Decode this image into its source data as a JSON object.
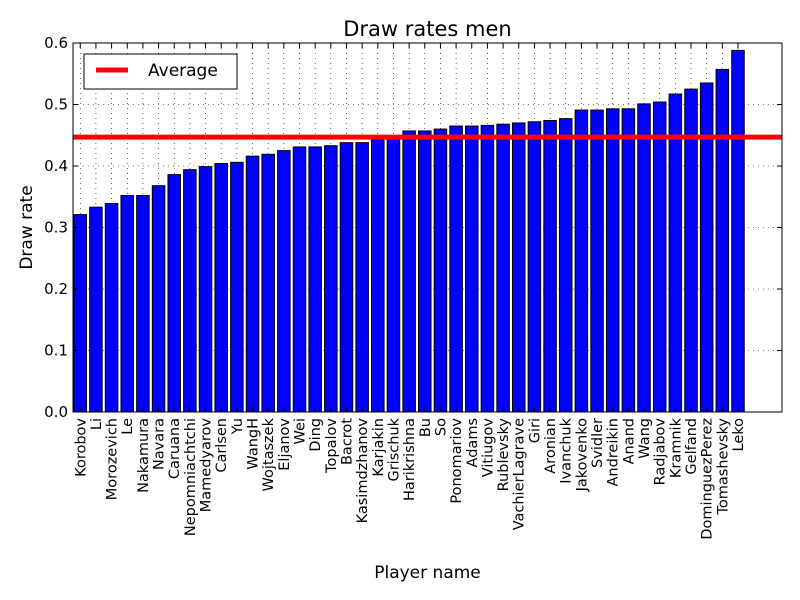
{
  "chart_data": {
    "type": "bar",
    "title": "Draw rates men",
    "xlabel": "Player name",
    "ylabel": "Draw rate",
    "ylim": [
      0.0,
      0.6
    ],
    "yticks": [
      "0.0",
      "0.1",
      "0.2",
      "0.3",
      "0.4",
      "0.5",
      "0.6"
    ],
    "grid": true,
    "legend": {
      "position": "upper left",
      "entries": [
        "Average"
      ]
    },
    "average_line": {
      "label": "Average",
      "value": 0.447,
      "color": "#ff0000"
    },
    "bar_color": "#0000ff",
    "categories": [
      "Korobov",
      "Li",
      "Morozevich",
      "Le",
      "Nakamura",
      "Navara",
      "Caruana",
      "Nepomniachtchi",
      "Mamedyarov",
      "Carlsen",
      "Yu",
      "WangH",
      "Wojtaszek",
      "Eljanov",
      "Wei",
      "Ding",
      "Topalov",
      "Bacrot",
      "Kasimdzhanov",
      "Karjakin",
      "Grischuk",
      "Harikrishna",
      "Bu",
      "So",
      "Ponomariov",
      "Adams",
      "Vitiugov",
      "Rublevsky",
      "VachierLagrave",
      "Giri",
      "Aronian",
      "Ivanchuk",
      "Jakovenko",
      "Svidler",
      "Andreikin",
      "Anand",
      "Wang",
      "Radjabov",
      "Kramnik",
      "Gelfand",
      "DominguezPerez",
      "Tomashevsky",
      "Leko"
    ],
    "values": [
      0.321,
      0.333,
      0.339,
      0.352,
      0.352,
      0.368,
      0.386,
      0.394,
      0.399,
      0.404,
      0.406,
      0.416,
      0.419,
      0.425,
      0.431,
      0.431,
      0.433,
      0.438,
      0.438,
      0.446,
      0.447,
      0.457,
      0.457,
      0.46,
      0.465,
      0.465,
      0.466,
      0.468,
      0.47,
      0.472,
      0.474,
      0.477,
      0.491,
      0.491,
      0.493,
      0.493,
      0.501,
      0.504,
      0.517,
      0.525,
      0.535,
      0.557,
      0.588
    ]
  }
}
